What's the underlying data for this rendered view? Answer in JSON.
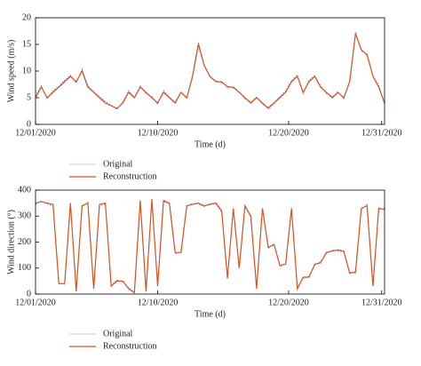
{
  "chart_data": [
    {
      "type": "line",
      "y_label": "Wind speed (m/s)",
      "x_label": "Time (d)",
      "x": [
        0,
        0.5,
        1,
        1.5,
        2,
        2.5,
        3,
        3.5,
        4,
        4.5,
        5,
        5.5,
        6,
        6.5,
        7,
        7.5,
        8,
        8.5,
        9,
        9.5,
        10,
        10.5,
        11,
        11.5,
        12,
        12.5,
        13,
        13.5,
        14,
        14.5,
        15,
        15.5,
        16,
        16.5,
        17,
        17.5,
        18,
        18.5,
        19,
        19.5,
        20,
        20.5,
        21,
        21.5,
        22,
        22.5,
        23,
        23.5,
        24,
        24.5,
        25,
        25.5,
        26,
        26.5,
        27,
        27.5,
        28,
        28.5,
        29,
        29.5,
        30
      ],
      "xlim": [
        0,
        30
      ],
      "ylim": [
        0,
        20
      ],
      "xticks": [
        {
          "value": 0,
          "label": "12/01/2020"
        },
        {
          "value": 10.5,
          "label": "12/10/2020"
        },
        {
          "value": 21.75,
          "label": "12/20/2020"
        },
        {
          "value": 29.75,
          "label": "12/31/2020"
        }
      ],
      "yticks": [
        0,
        5,
        10,
        15,
        20
      ],
      "series": [
        {
          "name": "Original",
          "color": "#6272d6",
          "values": [
            5.3,
            7.2,
            4.8,
            6.3,
            7.1,
            8.3,
            9.2,
            7.8,
            10.3,
            7.2,
            6.1,
            5.2,
            4.3,
            3.6,
            2.8,
            4.2,
            6.3,
            5.1,
            7.2,
            5.8,
            5.2,
            3.8,
            6.3,
            5.1,
            4.2,
            6.1,
            4.8,
            9.3,
            15.4,
            11.2,
            8.8,
            8.2,
            7.8,
            7.2,
            6.8,
            6.1,
            4.8,
            4.2,
            5.1,
            3.8,
            3.2,
            4.1,
            5.2,
            6.3,
            8.2,
            9.3,
            5.8,
            8.3,
            9.1,
            7.2,
            5.8,
            5.2,
            6.1,
            4.8,
            8.2,
            17.3,
            13.8,
            13.2,
            9.1,
            7.3,
            3.8
          ]
        },
        {
          "name": "Reconstruction",
          "color": "#d9541e",
          "values": [
            5,
            7,
            5,
            6,
            7,
            8,
            9,
            8,
            10,
            7,
            6,
            5,
            4,
            3.5,
            3,
            4,
            6,
            5,
            7,
            6,
            5,
            4,
            6,
            5,
            4,
            6,
            5,
            9,
            15,
            11,
            9,
            8,
            8,
            7,
            7,
            6,
            5,
            4,
            5,
            4,
            3,
            4,
            5,
            6,
            8,
            9,
            6,
            8,
            9,
            7,
            6,
            5,
            6,
            5,
            8,
            17,
            14,
            13,
            9,
            7,
            4
          ]
        }
      ]
    },
    {
      "type": "line",
      "y_label": "Wind direction (°)",
      "x_label": "Time (d)",
      "x": [
        0,
        0.5,
        1,
        1.5,
        2,
        2.5,
        3,
        3.5,
        4,
        4.5,
        5,
        5.5,
        6,
        6.5,
        7,
        7.5,
        8,
        8.5,
        9,
        9.5,
        10,
        10.5,
        11,
        11.5,
        12,
        12.5,
        13,
        13.5,
        14,
        14.5,
        15,
        15.5,
        16,
        16.5,
        17,
        17.5,
        18,
        18.5,
        19,
        19.5,
        20,
        20.5,
        21,
        21.5,
        22,
        22.5,
        23,
        23.5,
        24,
        24.5,
        25,
        25.5,
        26,
        26.5,
        27,
        27.5,
        28,
        28.5,
        29,
        29.5,
        30
      ],
      "xlim": [
        0,
        30
      ],
      "ylim": [
        0,
        400
      ],
      "xticks": [
        {
          "value": 0,
          "label": "12/01/2020"
        },
        {
          "value": 10.5,
          "label": "12/10/2020"
        },
        {
          "value": 21.75,
          "label": "12/20/2020"
        },
        {
          "value": 29.75,
          "label": "12/31/2020"
        }
      ],
      "yticks": [
        0,
        100,
        200,
        300,
        400
      ],
      "series": [
        {
          "name": "Original",
          "color": "#6272d6",
          "values": [
            345,
            358,
            346,
            340,
            44,
            38,
            346,
            14,
            335,
            354,
            24,
            340,
            346,
            34,
            54,
            47,
            24,
            8,
            356,
            14,
            360,
            34,
            356,
            346,
            155,
            164,
            336,
            349,
            346,
            336,
            349,
            346,
            316,
            64,
            326,
            104,
            336,
            296,
            24,
            326,
            176,
            194,
            106,
            119,
            326,
            24,
            61,
            69,
            111,
            124,
            156,
            169,
            166,
            161,
            84,
            81,
            326,
            344,
            34,
            326,
            329
          ]
        },
        {
          "name": "Reconstruction",
          "color": "#d9541e",
          "values": [
            350,
            355,
            350,
            345,
            40,
            40,
            350,
            10,
            340,
            350,
            20,
            345,
            350,
            30,
            50,
            50,
            20,
            5,
            360,
            10,
            365,
            30,
            360,
            350,
            160,
            160,
            340,
            345,
            350,
            340,
            345,
            350,
            320,
            60,
            330,
            100,
            340,
            300,
            20,
            330,
            180,
            190,
            110,
            115,
            330,
            20,
            65,
            65,
            115,
            120,
            160,
            165,
            170,
            165,
            80,
            85,
            330,
            340,
            30,
            330,
            325
          ]
        }
      ]
    }
  ]
}
